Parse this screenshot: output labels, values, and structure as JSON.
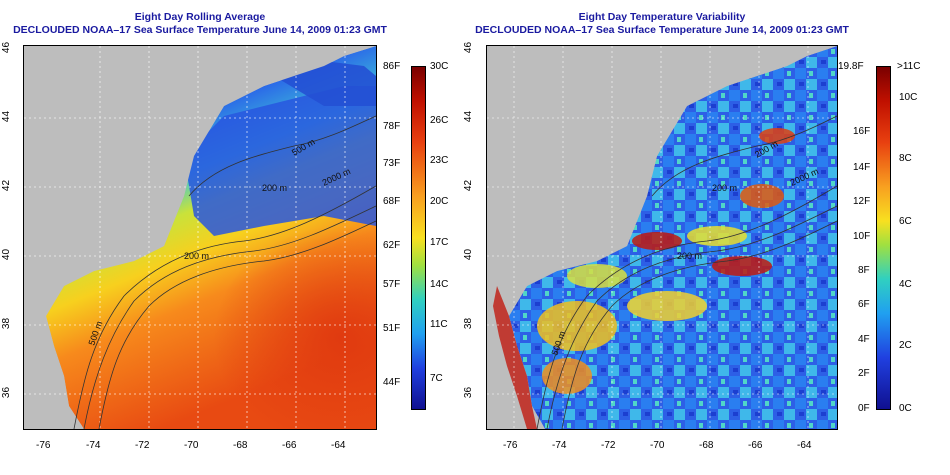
{
  "left_panel": {
    "title_line1": "Eight Day Rolling Average",
    "title_line2": "DECLOUDED NOAA–17 Sea Surface Temperature June 14, 2009 01:23 GMT",
    "contours": [
      "200 m",
      "500 m",
      "2000 m",
      "200 m",
      "500 m"
    ],
    "colorbar_f": [
      "86F",
      "78F",
      "73F",
      "68F",
      "62F",
      "57F",
      "51F",
      "44F"
    ],
    "colorbar_c": [
      "30C",
      "26C",
      "23C",
      "20C",
      "17C",
      "14C",
      "11C",
      "7C"
    ]
  },
  "right_panel": {
    "title_line1": "Eight Day Temperature Variability",
    "title_line2": "DECLOUDED NOAA–17 Sea Surface Temperature June 14, 2009 01:23 GMT",
    "contours": [
      "200 m",
      "200 m",
      "500 m",
      "2000 m",
      "200 m"
    ],
    "colorbar_f": [
      "19.8F",
      "16F",
      "14F",
      "12F",
      "10F",
      "8F",
      "6F",
      "4F",
      "2F",
      "0F"
    ],
    "colorbar_c": [
      ">11C",
      "10C",
      "8C",
      "6C",
      "4C",
      "2C",
      "0C"
    ]
  },
  "axes": {
    "lon_ticks": [
      "-76",
      "-74",
      "-72",
      "-70",
      "-68",
      "-66",
      "-64"
    ],
    "lat_ticks": [
      "46",
      "44",
      "42",
      "40",
      "38",
      "36"
    ]
  },
  "colors": {
    "land": "#bdbdbd",
    "title": "#1a1aa0"
  }
}
